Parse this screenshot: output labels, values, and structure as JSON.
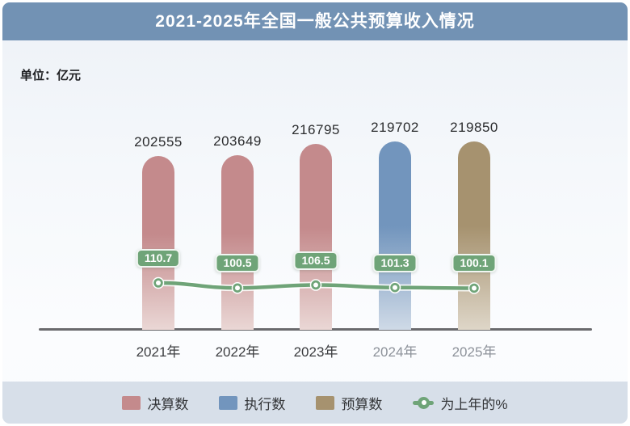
{
  "header": {
    "title": "2021-2025年全国一般公共预算收入情况"
  },
  "unit_label": "单位：亿元",
  "chart_data": {
    "type": "bar+line",
    "title": "2021-2025年全国一般公共预算收入情况",
    "unit": "亿元",
    "ylim": [
      0,
      233000
    ],
    "grid": false,
    "legend_position": "bottom",
    "categories": [
      {
        "label": "2021年",
        "muted": false
      },
      {
        "label": "2022年",
        "muted": false
      },
      {
        "label": "2023年",
        "muted": false
      },
      {
        "label": "2024年",
        "muted": true
      },
      {
        "label": "2025年",
        "muted": true
      }
    ],
    "bars": [
      {
        "category": "2021年",
        "series": "决算数",
        "value": 202555
      },
      {
        "category": "2022年",
        "series": "决算数",
        "value": 203649
      },
      {
        "category": "2023年",
        "series": "决算数",
        "value": 216795
      },
      {
        "category": "2024年",
        "series": "执行数",
        "value": 219702
      },
      {
        "category": "2025年",
        "series": "预算数",
        "value": 219850
      }
    ],
    "line_series": {
      "name": "为上年的%",
      "values": [
        110.7,
        100.5,
        106.5,
        101.3,
        100.1
      ]
    },
    "colors": {
      "决算数": {
        "main": "#c48a8c",
        "fade": "#ead7d5"
      },
      "执行数": {
        "main": "#7295bd",
        "fade": "#cfdae7"
      },
      "预算数": {
        "main": "#a6926f",
        "fade": "#ded6c8"
      },
      "为上年的%": "#6fa478",
      "header": "#7292b4",
      "legend_band": "#d7dfe9",
      "axis": "#6a6a6d"
    },
    "legend": [
      {
        "label": "决算数",
        "swatch": "bar",
        "color": "#c48a8c"
      },
      {
        "label": "执行数",
        "swatch": "bar",
        "color": "#7295bd"
      },
      {
        "label": "预算数",
        "swatch": "bar",
        "color": "#a6926f"
      },
      {
        "label": "为上年的%",
        "swatch": "line",
        "color": "#6fa478"
      }
    ]
  }
}
